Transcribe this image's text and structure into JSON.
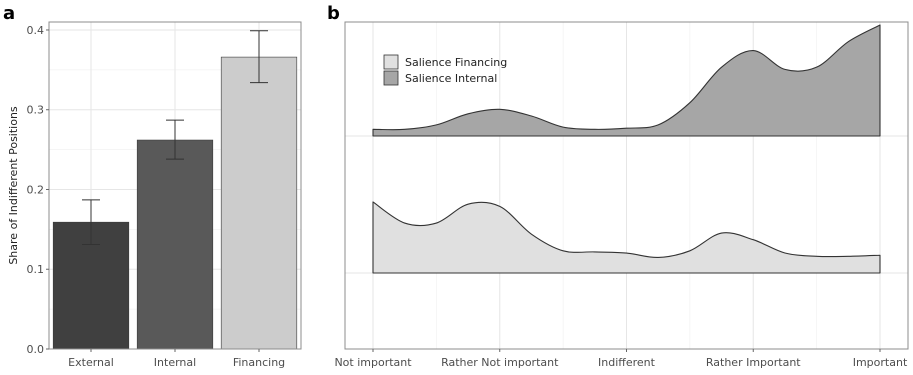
{
  "panel_a_letter": "a",
  "panel_b_letter": "b",
  "chart_data": [
    {
      "type": "bar",
      "ylabel": "Share of Indifferent Positions",
      "xlabel": "",
      "categories": [
        "External",
        "Internal",
        "Financing"
      ],
      "values": [
        0.159,
        0.262,
        0.366
      ],
      "error_low": [
        0.131,
        0.238,
        0.334
      ],
      "error_high": [
        0.187,
        0.287,
        0.399
      ],
      "colors": [
        "#404040",
        "#595959",
        "#cccccc"
      ],
      "ylim": [
        0,
        0.41
      ],
      "yticks": [
        0.0,
        0.1,
        0.2,
        0.3,
        0.4
      ],
      "ytick_labels": [
        "0.0",
        "0.1",
        "0.2",
        "0.3",
        "0.4"
      ],
      "grid": true
    },
    {
      "type": "area",
      "categories": [
        "Not important",
        "Rather Not important",
        "Indifferent",
        "Rather Important",
        "Important"
      ],
      "x": [
        1,
        1.25,
        1.5,
        1.75,
        2,
        2.25,
        2.5,
        2.75,
        3,
        3.25,
        3.5,
        3.75,
        4,
        4.25,
        4.5,
        4.75,
        5
      ],
      "xlim": [
        1,
        5
      ],
      "legend": {
        "position": "top-left",
        "entries": [
          "Salience Financing",
          "Salience Internal"
        ]
      },
      "grid": true,
      "series": [
        {
          "name": "Salience Internal",
          "color": "#a6a6a6",
          "values": [
            0.06,
            0.06,
            0.1,
            0.2,
            0.24,
            0.18,
            0.08,
            0.06,
            0.07,
            0.1,
            0.3,
            0.62,
            0.77,
            0.6,
            0.62,
            0.85,
            1.0
          ]
        },
        {
          "name": "Salience Financing",
          "color": "#e0e0e0",
          "values": [
            0.64,
            0.45,
            0.45,
            0.62,
            0.6,
            0.35,
            0.2,
            0.19,
            0.18,
            0.14,
            0.2,
            0.36,
            0.3,
            0.18,
            0.15,
            0.15,
            0.16
          ]
        }
      ]
    }
  ]
}
